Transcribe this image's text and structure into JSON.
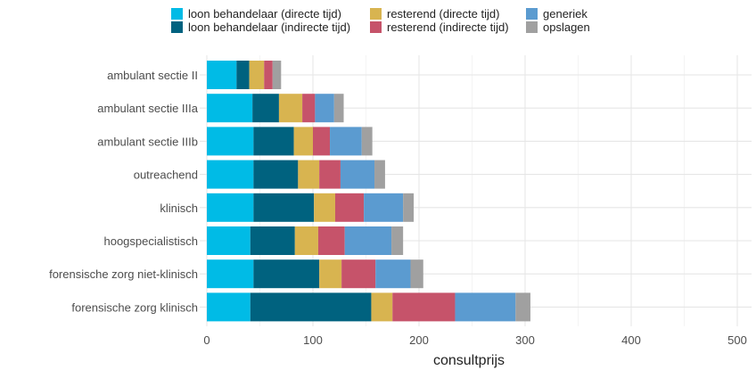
{
  "chart_data": {
    "type": "bar",
    "orientation": "horizontal",
    "stacked": true,
    "xlabel": "consultprijs",
    "ylabel": "",
    "xlim": [
      0,
      510
    ],
    "xticks": [
      0,
      100,
      200,
      300,
      400,
      500
    ],
    "grid": true,
    "legend_position": "top",
    "categories": [
      "ambulant sectie II",
      "ambulant sectie IIIa",
      "ambulant sectie IIIb",
      "outreachend",
      "klinisch",
      "hoogspecialistisch",
      "forensische zorg niet-klinisch",
      "forensische zorg klinisch"
    ],
    "series": [
      {
        "name": "loon behandelaar (directe tijd)",
        "color": "#00bbe6",
        "values": [
          28,
          43,
          44,
          44,
          44,
          41,
          44,
          41
        ]
      },
      {
        "name": "loon behandelaar (indirecte tijd)",
        "color": "#00627f",
        "values": [
          12,
          25,
          38,
          42,
          57,
          42,
          62,
          114
        ]
      },
      {
        "name": "resterend (directe tijd)",
        "color": "#d8b450",
        "values": [
          14,
          22,
          18,
          20,
          20,
          22,
          21,
          20
        ]
      },
      {
        "name": "resterend (indirecte tijd)",
        "color": "#c6536a",
        "values": [
          8,
          12,
          16,
          20,
          27,
          25,
          32,
          59
        ]
      },
      {
        "name": "generiek",
        "color": "#5b9bd0",
        "values": [
          0,
          18,
          30,
          32,
          37,
          44,
          33,
          57
        ]
      },
      {
        "name": "opslagen",
        "color": "#a0a0a0",
        "values": [
          8,
          9,
          10,
          10,
          10,
          11,
          12,
          14
        ]
      }
    ]
  }
}
